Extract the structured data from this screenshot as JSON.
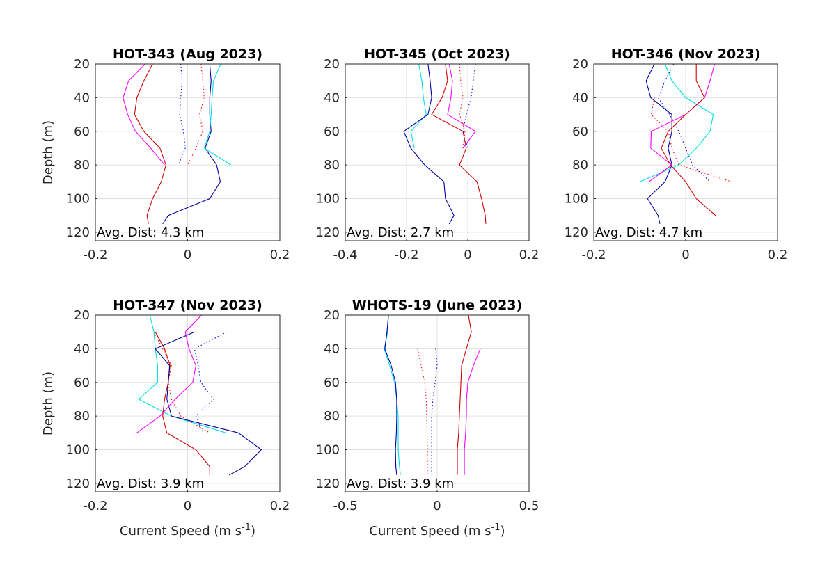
{
  "chart_data": [
    {
      "type": "line",
      "title": "HOT-343 (Aug 2023)",
      "ylabel": "Depth (m)",
      "annotation": "Avg. Dist: 4.3 km",
      "xlim": [
        -0.2,
        0.2
      ],
      "xticks": [
        -0.2,
        0,
        0.2
      ],
      "ylim": [
        20,
        125
      ],
      "yticks": [
        20,
        40,
        60,
        80,
        100,
        120
      ],
      "yreverse": true,
      "grid": true,
      "y": [
        20,
        30,
        40,
        50,
        60,
        70,
        80,
        90,
        100,
        110,
        115
      ],
      "series": [
        {
          "color": "#ff00ff",
          "style": "solid",
          "values": [
            -0.092,
            -0.128,
            -0.14,
            -0.13,
            -0.113,
            -0.08,
            -0.05,
            null,
            null,
            null,
            null
          ]
        },
        {
          "color": "#d00000",
          "style": "solid",
          "values": [
            -0.076,
            -0.095,
            -0.11,
            -0.115,
            -0.095,
            -0.06,
            -0.047,
            -0.057,
            -0.076,
            -0.088,
            -0.085
          ]
        },
        {
          "color": "#0000ff",
          "style": "dotted",
          "values": [
            -0.015,
            -0.012,
            -0.015,
            -0.017,
            -0.009,
            -0.005,
            -0.02,
            null,
            null,
            null,
            null
          ]
        },
        {
          "color": "#ff0000",
          "style": "dotted",
          "values": [
            0.029,
            0.033,
            0.036,
            0.026,
            0.033,
            0.018,
            0,
            null,
            null,
            null,
            null
          ]
        },
        {
          "color": "#0000a0",
          "style": "solid",
          "values": [
            0.048,
            0.051,
            0.048,
            0.048,
            0.051,
            0.038,
            0.063,
            0.071,
            0.048,
            -0.042,
            -0.054
          ]
        },
        {
          "color": "#00e0e0",
          "style": "solid",
          "values": [
            0.072,
            0.056,
            0.053,
            0.051,
            0.048,
            0.036,
            0.094,
            null,
            null,
            null,
            null
          ]
        }
      ]
    },
    {
      "type": "line",
      "title": "HOT-345 (Oct 2023)",
      "annotation": "Avg. Dist: 2.7 km",
      "xlim": [
        -0.4,
        0.2
      ],
      "xticks": [
        -0.4,
        -0.2,
        0,
        0.2
      ],
      "ylim": [
        20,
        125
      ],
      "yticks": [
        20,
        40,
        60,
        80,
        100,
        120
      ],
      "yreverse": true,
      "grid": true,
      "y": [
        20,
        30,
        40,
        50,
        60,
        70,
        80,
        90,
        100,
        110,
        115
      ],
      "series": [
        {
          "color": "#00e0e0",
          "style": "solid",
          "values": [
            -0.16,
            -0.15,
            -0.145,
            -0.136,
            -0.186,
            -0.175,
            null,
            null,
            null,
            null,
            null
          ]
        },
        {
          "color": "#0000a0",
          "style": "solid",
          "values": [
            -0.13,
            -0.123,
            -0.118,
            -0.13,
            -0.209,
            -0.186,
            -0.141,
            -0.078,
            -0.073,
            -0.045,
            -0.061
          ]
        },
        {
          "color": "#d00000",
          "style": "solid",
          "values": [
            -0.073,
            -0.066,
            -0.084,
            -0.118,
            -0.016,
            -0.005,
            -0.027,
            0.03,
            0.045,
            0.057,
            0.059
          ]
        },
        {
          "color": "#ff00ff",
          "style": "solid",
          "values": [
            -0.061,
            -0.05,
            -0.055,
            -0.066,
            0.025,
            -0.016,
            null,
            null,
            null,
            null,
            null
          ]
        },
        {
          "color": "#ff0000",
          "style": "dotted",
          "values": [
            -0.027,
            -0.023,
            -0.016,
            -0.027,
            -0.009,
            -0.016,
            null,
            null,
            null,
            null,
            null
          ]
        },
        {
          "color": "#0000ff",
          "style": "dotted",
          "values": [
            0.025,
            0.018,
            0.011,
            -0.005,
            -0.016,
            0,
            null,
            null,
            null,
            null,
            null
          ]
        }
      ]
    },
    {
      "type": "line",
      "title": "HOT-346 (Nov 2023)",
      "annotation": "Avg. Dist: 4.7 km",
      "xlim": [
        -0.2,
        0.2
      ],
      "xticks": [
        -0.2,
        0,
        0.2
      ],
      "ylim": [
        20,
        125
      ],
      "yticks": [
        20,
        40,
        60,
        80,
        100,
        120
      ],
      "yreverse": true,
      "grid": true,
      "y": [
        20,
        30,
        40,
        50,
        60,
        70,
        80,
        90,
        100,
        110,
        115
      ],
      "series": [
        {
          "color": "#0000a0",
          "style": "solid",
          "values": [
            -0.068,
            -0.086,
            -0.076,
            -0.03,
            -0.03,
            -0.038,
            -0.03,
            -0.045,
            -0.083,
            -0.06,
            -0.056
          ]
        },
        {
          "color": "#0000ff",
          "style": "dotted",
          "values": [
            -0.026,
            -0.045,
            -0.06,
            -0.035,
            -0.015,
            0,
            0.015,
            0.053,
            null,
            null,
            null
          ]
        },
        {
          "color": "#00e0e0",
          "style": "solid",
          "values": [
            -0.045,
            -0.03,
            0,
            0.06,
            0.053,
            0.023,
            -0.015,
            -0.1,
            null,
            null,
            null
          ]
        },
        {
          "color": "#ff00ff",
          "style": "solid",
          "values": [
            0.063,
            0.053,
            0.041,
            0,
            -0.075,
            -0.076,
            -0.03,
            -0.08,
            null,
            null,
            null
          ]
        },
        {
          "color": "#d00000",
          "style": "solid",
          "values": [
            0.023,
            0.023,
            0.041,
            0,
            -0.038,
            -0.053,
            -0.033,
            0,
            0.023,
            0.065,
            null
          ]
        },
        {
          "color": "#ff0000",
          "style": "dotted",
          "values": [
            null,
            null,
            -0.068,
            -0.075,
            -0.038,
            -0.03,
            -0.015,
            0.1,
            null,
            null,
            null
          ]
        }
      ]
    },
    {
      "type": "line",
      "title": "HOT-347 (Nov 2023)",
      "ylabel": "Depth (m)",
      "xlabel": [
        "Current Speed (m s",
        "-1",
        ")"
      ],
      "annotation": "Avg. Dist: 3.9 km",
      "xlim": [
        -0.2,
        0.2
      ],
      "xticks": [
        -0.2,
        0,
        0.2
      ],
      "ylim": [
        20,
        125
      ],
      "yticks": [
        20,
        40,
        60,
        80,
        100,
        120
      ],
      "yreverse": true,
      "grid": true,
      "y": [
        20,
        30,
        40,
        50,
        60,
        70,
        80,
        90,
        100,
        110,
        115
      ],
      "series": [
        {
          "color": "#00e0e0",
          "style": "solid",
          "values": [
            -0.082,
            -0.073,
            -0.07,
            -0.065,
            -0.065,
            -0.106,
            -0.035,
            0.083,
            null,
            null,
            null
          ]
        },
        {
          "color": "#d00000",
          "style": "solid",
          "values": [
            null,
            -0.07,
            -0.05,
            -0.038,
            -0.042,
            -0.05,
            -0.054,
            -0.045,
            0.018,
            0.048,
            0.048
          ]
        },
        {
          "color": "#0000a0",
          "style": "solid",
          "values": [
            null,
            0.015,
            -0.07,
            -0.039,
            -0.042,
            -0.045,
            -0.035,
            0.11,
            0.16,
            0.124,
            0.09
          ]
        },
        {
          "color": "#ff00ff",
          "style": "solid",
          "values": [
            0.03,
            -0.005,
            0.003,
            0.018,
            0.011,
            -0.027,
            -0.06,
            -0.11,
            null,
            null,
            null
          ]
        },
        {
          "color": "#0000ff",
          "style": "dotted",
          "values": [
            null,
            0.085,
            0.015,
            0.023,
            0.029,
            0.056,
            0.018,
            0.033,
            null,
            null,
            null
          ]
        },
        {
          "color": "#ff0000",
          "style": "dotted",
          "values": [
            null,
            -0.073,
            -0.054,
            -0.035,
            -0.042,
            -0.035,
            -0.015,
            0.048,
            null,
            null,
            null
          ]
        }
      ]
    },
    {
      "type": "line",
      "title": "WHOTS-19 (June 2023)",
      "xlabel": [
        "Current Speed (m s",
        "-1",
        ")"
      ],
      "annotation": "Avg. Dist: 3.9 km",
      "xlim": [
        -0.5,
        0.5
      ],
      "xticks": [
        -0.5,
        0,
        0.5
      ],
      "ylim": [
        20,
        125
      ],
      "yticks": [
        20,
        40,
        60,
        80,
        100,
        120
      ],
      "yreverse": true,
      "grid": true,
      "y": [
        20,
        30,
        40,
        50,
        60,
        70,
        80,
        90,
        100,
        110,
        115
      ],
      "series": [
        {
          "color": "#00e0e0",
          "style": "solid",
          "values": [
            -0.265,
            -0.269,
            -0.288,
            -0.258,
            -0.232,
            -0.22,
            -0.212,
            -0.212,
            -0.212,
            -0.205,
            -0.2
          ]
        },
        {
          "color": "#0000a0",
          "style": "solid",
          "values": [
            -0.265,
            -0.273,
            -0.285,
            -0.25,
            -0.227,
            -0.22,
            -0.22,
            -0.222,
            -0.227,
            -0.225,
            -0.22
          ]
        },
        {
          "color": "#ff0000",
          "style": "dotted",
          "values": [
            null,
            null,
            -0.106,
            -0.087,
            -0.068,
            -0.06,
            -0.057,
            -0.055,
            -0.053,
            -0.053,
            -0.053
          ]
        },
        {
          "color": "#0000ff",
          "style": "dotted",
          "values": [
            null,
            null,
            -0.008,
            0,
            -0.011,
            -0.023,
            -0.03,
            -0.03,
            -0.03,
            -0.03,
            -0.03
          ]
        },
        {
          "color": "#d00000",
          "style": "solid",
          "values": [
            0.17,
            0.186,
            0.159,
            0.133,
            0.129,
            0.125,
            0.121,
            0.117,
            0.11,
            0.11,
            0.11
          ]
        },
        {
          "color": "#ff00ff",
          "style": "solid",
          "values": [
            null,
            null,
            0.235,
            0.197,
            0.167,
            0.16,
            0.159,
            0.155,
            0.148,
            0.148,
            0.148
          ]
        }
      ]
    }
  ]
}
